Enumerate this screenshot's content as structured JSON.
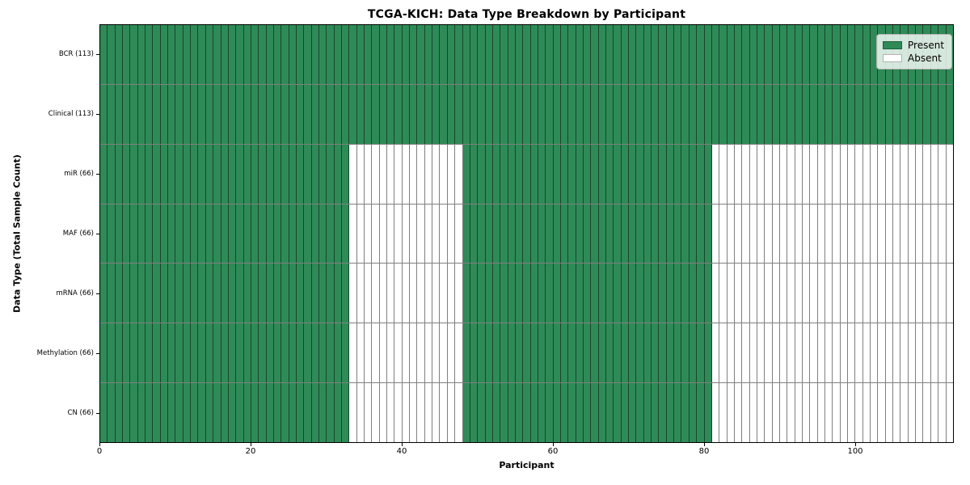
{
  "chart_data": {
    "type": "heatmap",
    "title": "TCGA-KICH: Data Type Breakdown by Participant",
    "xlabel": "Participant",
    "ylabel": "Data Type (Total Sample Count)",
    "x_ticks": [
      0,
      20,
      40,
      60,
      80,
      100
    ],
    "x_range": [
      0,
      113
    ],
    "n_participants": 113,
    "grid": "cell-borders",
    "legend_position": "upper right",
    "legend": [
      {
        "label": "Present",
        "color": "#2e8b57"
      },
      {
        "label": "Absent",
        "color": "#ffffff"
      }
    ],
    "colors": {
      "present": "#2e8b57",
      "absent": "#ffffff",
      "cell_edge": "rgba(0,0,0,0.5)",
      "spine": "#000000"
    },
    "rows": [
      {
        "name": "bcr",
        "label": "BCR (113)",
        "present_count": 113,
        "present_ranges": [
          [
            0,
            113
          ]
        ]
      },
      {
        "name": "clinical",
        "label": "Clinical (113)",
        "present_count": 113,
        "present_ranges": [
          [
            0,
            113
          ]
        ]
      },
      {
        "name": "mir",
        "label": "miR (66)",
        "present_count": 66,
        "present_ranges": [
          [
            0,
            33
          ],
          [
            48,
            81
          ]
        ]
      },
      {
        "name": "maf",
        "label": "MAF (66)",
        "present_count": 66,
        "present_ranges": [
          [
            0,
            33
          ],
          [
            48,
            81
          ]
        ]
      },
      {
        "name": "mrna",
        "label": "mRNA (66)",
        "present_count": 66,
        "present_ranges": [
          [
            0,
            33
          ],
          [
            48,
            81
          ]
        ]
      },
      {
        "name": "methylation",
        "label": "Methylation (66)",
        "present_count": 66,
        "present_ranges": [
          [
            0,
            33
          ],
          [
            48,
            81
          ]
        ]
      },
      {
        "name": "cn",
        "label": "CN (66)",
        "present_count": 66,
        "present_ranges": [
          [
            0,
            33
          ],
          [
            48,
            81
          ]
        ]
      }
    ]
  }
}
